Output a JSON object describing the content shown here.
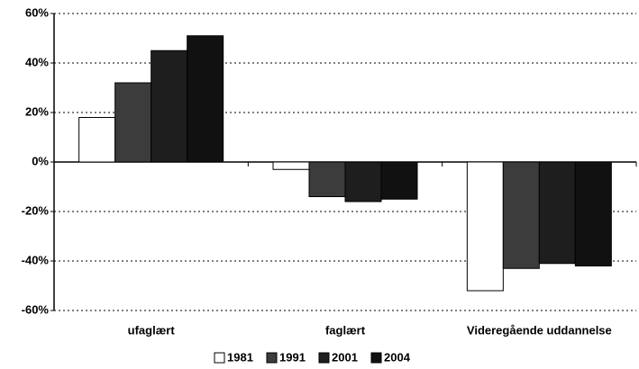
{
  "chart_data": {
    "type": "bar",
    "categories": [
      "ufaglært",
      "faglært",
      "Videregående uddannelse"
    ],
    "series": [
      {
        "name": "1981",
        "color": "#ffffff",
        "values": [
          18,
          -3,
          -52
        ]
      },
      {
        "name": "1991",
        "color": "#3c3c3c",
        "values": [
          32,
          -14,
          -43
        ]
      },
      {
        "name": "2001",
        "color": "#1e1e1e",
        "values": [
          45,
          -16,
          -41
        ]
      },
      {
        "name": "2004",
        "color": "#111111",
        "values": [
          51,
          -15,
          -42
        ]
      }
    ],
    "ylim": [
      -60,
      60
    ],
    "yticks": [
      {
        "value": -60,
        "label": "-60%"
      },
      {
        "value": -40,
        "label": "-40%"
      },
      {
        "value": -20,
        "label": "-20%"
      },
      {
        "value": 0,
        "label": "0%"
      },
      {
        "value": 20,
        "label": "20%"
      },
      {
        "value": 40,
        "label": "40%"
      },
      {
        "value": 60,
        "label": "60%"
      }
    ],
    "grid": true,
    "legend": "bottom"
  }
}
